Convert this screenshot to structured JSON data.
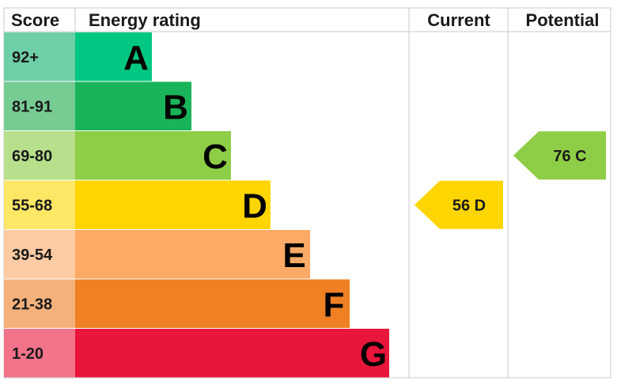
{
  "headers": {
    "score": "Score",
    "rating": "Energy rating",
    "current": "Current",
    "potential": "Potential"
  },
  "chart_data": {
    "type": "bar",
    "bands": [
      {
        "letter": "A",
        "range": "92+",
        "bar_color": "#00c781",
        "score_bg": "#6fd0a8"
      },
      {
        "letter": "B",
        "range": "81-91",
        "bar_color": "#19b459",
        "score_bg": "#77cc94"
      },
      {
        "letter": "C",
        "range": "69-80",
        "bar_color": "#8dce46",
        "score_bg": "#b7df8c"
      },
      {
        "letter": "D",
        "range": "55-68",
        "bar_color": "#ffd500",
        "score_bg": "#ffe766"
      },
      {
        "letter": "E",
        "range": "39-54",
        "bar_color": "#fcaa65",
        "score_bg": "#fdcba3"
      },
      {
        "letter": "F",
        "range": "21-38",
        "bar_color": "#ef8023",
        "score_bg": "#f5b17b"
      },
      {
        "letter": "G",
        "range": "1-20",
        "bar_color": "#e9153b",
        "score_bg": "#f2738a"
      }
    ],
    "current": {
      "score": 56,
      "letter": "D",
      "label": "56  D",
      "color": "#ffd500"
    },
    "potential": {
      "score": 76,
      "letter": "C",
      "label": "76  C",
      "color": "#8dce46"
    }
  }
}
